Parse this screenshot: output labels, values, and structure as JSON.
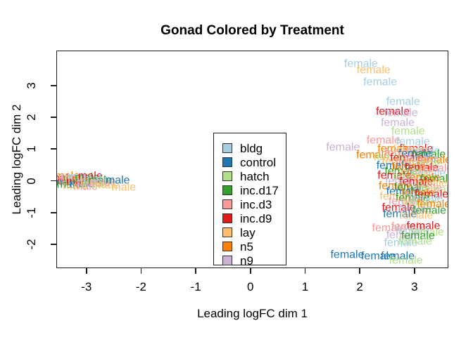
{
  "chart_data": {
    "type": "scatter",
    "title": "Gonad Colored by Treatment",
    "xlabel": "Leading logFC dim 1",
    "ylabel": "Leading logFC dim 2",
    "xlim": [
      -3.55,
      3.62
    ],
    "ylim": [
      -2.75,
      4.1
    ],
    "x_ticks": [
      -3,
      -2,
      -1,
      0,
      1,
      2,
      3
    ],
    "y_ticks": [
      3,
      2,
      1,
      0,
      -1,
      -2
    ],
    "grid": false,
    "legend_position": "inside-bottom-center",
    "point_style": "text-labels-by-sex",
    "groups": [
      {
        "name": "bldg",
        "color": "#a6cee3"
      },
      {
        "name": "control",
        "color": "#1f78b4"
      },
      {
        "name": "hatch",
        "color": "#b2df8a"
      },
      {
        "name": "inc.d17",
        "color": "#33a02c"
      },
      {
        "name": "inc.d3",
        "color": "#fb9a99"
      },
      {
        "name": "inc.d9",
        "color": "#e31a1c"
      },
      {
        "name": "lay",
        "color": "#fdbf6f"
      },
      {
        "name": "n5",
        "color": "#ff7f00"
      },
      {
        "name": "n9",
        "color": "#cab2d6"
      }
    ],
    "points": [
      {
        "x": -3.48,
        "y": -0.02,
        "label": "male",
        "group": "inc.d9"
      },
      {
        "x": -3.45,
        "y": 0.08,
        "label": "male",
        "group": "inc.d9"
      },
      {
        "x": -3.4,
        "y": -0.06,
        "label": "male",
        "group": "control"
      },
      {
        "x": -3.36,
        "y": 0.14,
        "label": "male",
        "group": "n5"
      },
      {
        "x": -3.33,
        "y": -0.12,
        "label": "male",
        "group": "inc.d17"
      },
      {
        "x": -3.3,
        "y": 0.02,
        "label": "male",
        "group": "inc.d3"
      },
      {
        "x": -3.26,
        "y": 0.1,
        "label": "male",
        "group": "n9"
      },
      {
        "x": -3.22,
        "y": -0.16,
        "label": "male",
        "group": "lay"
      },
      {
        "x": -3.2,
        "y": 0.05,
        "label": "male",
        "group": "hatch"
      },
      {
        "x": -3.16,
        "y": -0.04,
        "label": "male",
        "group": "inc.d9"
      },
      {
        "x": -3.13,
        "y": 0.12,
        "label": "male",
        "group": "bldg"
      },
      {
        "x": -3.1,
        "y": -0.1,
        "label": "male",
        "group": "control"
      },
      {
        "x": -3.06,
        "y": 0.03,
        "label": "male",
        "group": "n5"
      },
      {
        "x": -3.03,
        "y": -0.18,
        "label": "male",
        "group": "inc.d3"
      },
      {
        "x": -3.0,
        "y": 0.09,
        "label": "male",
        "group": "inc.d17"
      },
      {
        "x": -2.97,
        "y": -0.06,
        "label": "male",
        "group": "n9"
      },
      {
        "x": -2.94,
        "y": 0.14,
        "label": "male",
        "group": "inc.d9"
      },
      {
        "x": -2.9,
        "y": -0.01,
        "label": "male",
        "group": "lay"
      },
      {
        "x": -2.87,
        "y": -0.13,
        "label": "male",
        "group": "hatch"
      },
      {
        "x": -2.84,
        "y": 0.06,
        "label": "male",
        "group": "bldg"
      },
      {
        "x": -2.8,
        "y": -0.08,
        "label": "male",
        "group": "inc.d3"
      },
      {
        "x": -2.76,
        "y": 0.01,
        "label": "male",
        "group": "inc.d17"
      },
      {
        "x": -2.7,
        "y": -0.04,
        "label": "male",
        "group": "n9"
      },
      {
        "x": -2.63,
        "y": -0.15,
        "label": "male",
        "group": "lay"
      },
      {
        "x": -2.44,
        "y": 0.02,
        "label": "male",
        "group": "control"
      },
      {
        "x": -2.33,
        "y": -0.2,
        "label": "male",
        "group": "lay"
      },
      {
        "x": 2.01,
        "y": 3.69,
        "label": "female",
        "group": "bldg"
      },
      {
        "x": 2.24,
        "y": 3.49,
        "label": "female",
        "group": "lay"
      },
      {
        "x": 2.36,
        "y": 3.1,
        "label": "female",
        "group": "bldg"
      },
      {
        "x": 2.78,
        "y": 2.48,
        "label": "female",
        "group": "bldg"
      },
      {
        "x": 2.59,
        "y": 2.18,
        "label": "female",
        "group": "inc.d9"
      },
      {
        "x": 2.74,
        "y": 2.14,
        "label": "female",
        "group": "n9"
      },
      {
        "x": 2.68,
        "y": 1.82,
        "label": "female",
        "group": "n9"
      },
      {
        "x": 2.87,
        "y": 1.56,
        "label": "female",
        "group": "hatch"
      },
      {
        "x": 2.42,
        "y": 1.27,
        "label": "female",
        "group": "inc.d3"
      },
      {
        "x": 2.96,
        "y": 1.23,
        "label": "female",
        "group": "bldg"
      },
      {
        "x": 1.68,
        "y": 1.05,
        "label": "female",
        "group": "n9"
      },
      {
        "x": 3.02,
        "y": 1.01,
        "label": "female",
        "group": "inc.d9"
      },
      {
        "x": 2.23,
        "y": 0.81,
        "label": "female",
        "group": "n5"
      },
      {
        "x": 2.62,
        "y": 1.0,
        "label": "female",
        "group": "n5"
      },
      {
        "x": 2.9,
        "y": 0.98,
        "label": "female",
        "group": "lay"
      },
      {
        "x": 3.15,
        "y": 0.95,
        "label": "female",
        "group": "bldg"
      },
      {
        "x": 2.75,
        "y": 0.88,
        "label": "female",
        "group": "inc.d3"
      },
      {
        "x": 3.0,
        "y": 0.85,
        "label": "female",
        "group": "control"
      },
      {
        "x": 3.25,
        "y": 0.82,
        "label": "female",
        "group": "inc.d17"
      },
      {
        "x": 2.55,
        "y": 0.75,
        "label": "female",
        "group": "hatch"
      },
      {
        "x": 2.85,
        "y": 0.72,
        "label": "female",
        "group": "inc.d9"
      },
      {
        "x": 3.1,
        "y": 0.7,
        "label": "female",
        "group": "n9"
      },
      {
        "x": 3.35,
        "y": 0.66,
        "label": "female",
        "group": "n5"
      },
      {
        "x": 2.7,
        "y": 0.6,
        "label": "female",
        "group": "lay"
      },
      {
        "x": 2.95,
        "y": 0.57,
        "label": "female",
        "group": "inc.d3"
      },
      {
        "x": 3.2,
        "y": 0.54,
        "label": "female",
        "group": "hatch"
      },
      {
        "x": 2.6,
        "y": 0.47,
        "label": "female",
        "group": "control"
      },
      {
        "x": 2.88,
        "y": 0.44,
        "label": "female",
        "group": "n5"
      },
      {
        "x": 3.12,
        "y": 0.41,
        "label": "female",
        "group": "inc.d9"
      },
      {
        "x": 3.38,
        "y": 0.38,
        "label": "female",
        "group": "inc.d3"
      },
      {
        "x": 2.75,
        "y": 0.3,
        "label": "female",
        "group": "inc.d17"
      },
      {
        "x": 3.0,
        "y": 0.27,
        "label": "female",
        "group": "lay"
      },
      {
        "x": 3.25,
        "y": 0.24,
        "label": "female",
        "group": "bldg"
      },
      {
        "x": 2.62,
        "y": 0.16,
        "label": "female",
        "group": "inc.d9"
      },
      {
        "x": 2.9,
        "y": 0.13,
        "label": "female",
        "group": "hatch"
      },
      {
        "x": 3.15,
        "y": 0.1,
        "label": "female",
        "group": "n5"
      },
      {
        "x": 3.4,
        "y": 0.06,
        "label": "female",
        "group": "inc.d17"
      },
      {
        "x": 2.76,
        "y": 0.0,
        "label": "female",
        "group": "n9"
      },
      {
        "x": 3.02,
        "y": -0.04,
        "label": "female",
        "group": "inc.d9"
      },
      {
        "x": 3.28,
        "y": -0.08,
        "label": "female",
        "group": "lay"
      },
      {
        "x": 2.64,
        "y": -0.16,
        "label": "female",
        "group": "n5"
      },
      {
        "x": 2.92,
        "y": -0.2,
        "label": "female",
        "group": "inc.d17"
      },
      {
        "x": 3.18,
        "y": -0.23,
        "label": "female",
        "group": "inc.d3"
      },
      {
        "x": 3.42,
        "y": -0.27,
        "label": "female",
        "group": "hatch"
      },
      {
        "x": 2.78,
        "y": -0.35,
        "label": "female",
        "group": "control"
      },
      {
        "x": 3.05,
        "y": -0.38,
        "label": "female",
        "group": "n5"
      },
      {
        "x": 3.3,
        "y": -0.42,
        "label": "female",
        "group": "inc.d9"
      },
      {
        "x": 2.66,
        "y": -0.5,
        "label": "female",
        "group": "lay"
      },
      {
        "x": 2.95,
        "y": -0.54,
        "label": "female",
        "group": "inc.d17"
      },
      {
        "x": 3.2,
        "y": -0.57,
        "label": "female",
        "group": "bldg"
      },
      {
        "x": 2.82,
        "y": -0.66,
        "label": "female",
        "group": "inc.d3"
      },
      {
        "x": 3.08,
        "y": -0.7,
        "label": "female",
        "group": "hatch"
      },
      {
        "x": 3.34,
        "y": -0.74,
        "label": "female",
        "group": "n5"
      },
      {
        "x": 2.7,
        "y": -0.86,
        "label": "female",
        "group": "inc.d9"
      },
      {
        "x": 3.0,
        "y": -0.9,
        "label": "female",
        "group": "n9"
      },
      {
        "x": 3.26,
        "y": -0.94,
        "label": "female",
        "group": "inc.d17"
      },
      {
        "x": 2.72,
        "y": -1.05,
        "label": "female",
        "group": "control"
      },
      {
        "x": 3.02,
        "y": -1.09,
        "label": "female",
        "group": "lay"
      },
      {
        "x": 2.52,
        "y": -1.48,
        "label": "female",
        "group": "inc.d3"
      },
      {
        "x": 2.87,
        "y": -1.45,
        "label": "female",
        "group": "inc.d3"
      },
      {
        "x": 3.15,
        "y": -1.42,
        "label": "female",
        "group": "inc.d9"
      },
      {
        "x": 2.95,
        "y": -1.58,
        "label": "female",
        "group": "bldg"
      },
      {
        "x": 3.22,
        "y": -1.62,
        "label": "female",
        "group": "hatch"
      },
      {
        "x": 2.78,
        "y": -1.72,
        "label": "female",
        "group": "n9"
      },
      {
        "x": 3.05,
        "y": -1.74,
        "label": "female",
        "group": "inc.d17"
      },
      {
        "x": 2.74,
        "y": -1.96,
        "label": "female",
        "group": "bldg"
      },
      {
        "x": 3.0,
        "y": -1.9,
        "label": "female",
        "group": "hatch"
      },
      {
        "x": 1.76,
        "y": -2.33,
        "label": "female",
        "group": "control"
      },
      {
        "x": 2.32,
        "y": -2.37,
        "label": "female",
        "group": "control"
      },
      {
        "x": 2.68,
        "y": -2.37,
        "label": "female",
        "group": "control"
      },
      {
        "x": 2.83,
        "y": -2.51,
        "label": "female",
        "group": "hatch"
      }
    ]
  }
}
